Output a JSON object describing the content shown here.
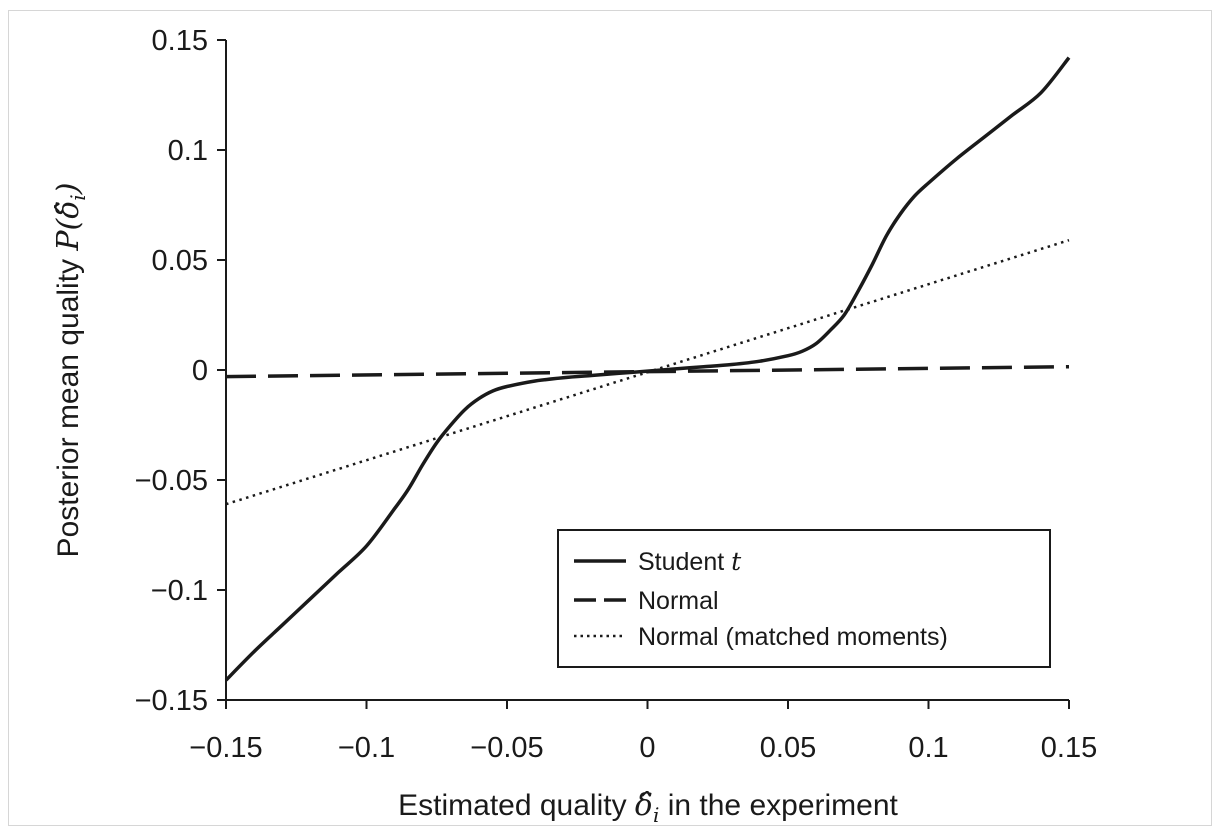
{
  "chart_data": {
    "type": "line",
    "xlabel_prefix": "Estimated quality ",
    "xlabel_symbol": "δ̂",
    "xlabel_subscript": "i",
    "xlabel_suffix": " in the experiment",
    "ylabel_prefix": "Posterior mean quality ",
    "ylabel_symbol": "P(δ̂",
    "ylabel_subscript": "i",
    "ylabel_close": ")",
    "xlim": [
      -0.15,
      0.15
    ],
    "ylim": [
      -0.15,
      0.15
    ],
    "xticks": [
      -0.15,
      -0.1,
      -0.05,
      0,
      0.05,
      0.1,
      0.15
    ],
    "yticks": [
      -0.15,
      -0.1,
      -0.05,
      0,
      0.05,
      0.1,
      0.15
    ],
    "xtick_labels": [
      "−0.15",
      "−0.1",
      "−0.05",
      "0",
      "0.05",
      "0.1",
      "0.15"
    ],
    "ytick_labels": [
      "−0.15",
      "−0.1",
      "−0.05",
      "0",
      "0.05",
      "0.1",
      "0.15"
    ],
    "grid": false,
    "legend_position": "bottom-right",
    "legend": {
      "student_t_prefix": "Student ",
      "student_t_symbol": "t",
      "normal": "Normal",
      "normal_matched": "Normal (matched moments)"
    },
    "series": [
      {
        "key": "student_t",
        "style": "solid",
        "color": "#1a1a1a",
        "points": [
          [
            -0.15,
            -0.141
          ],
          [
            -0.14,
            -0.128
          ],
          [
            -0.13,
            -0.116
          ],
          [
            -0.12,
            -0.104
          ],
          [
            -0.11,
            -0.092
          ],
          [
            -0.1,
            -0.08
          ],
          [
            -0.09,
            -0.063
          ],
          [
            -0.085,
            -0.054
          ],
          [
            -0.08,
            -0.043
          ],
          [
            -0.075,
            -0.033
          ],
          [
            -0.07,
            -0.025
          ],
          [
            -0.065,
            -0.018
          ],
          [
            -0.06,
            -0.013
          ],
          [
            -0.055,
            -0.0095
          ],
          [
            -0.05,
            -0.0075
          ],
          [
            -0.04,
            -0.005
          ],
          [
            -0.03,
            -0.0035
          ],
          [
            -0.02,
            -0.0025
          ],
          [
            -0.01,
            -0.0015
          ],
          [
            0,
            -0.0005
          ],
          [
            0.01,
            0.0005
          ],
          [
            0.02,
            0.0015
          ],
          [
            0.03,
            0.0025
          ],
          [
            0.04,
            0.004
          ],
          [
            0.05,
            0.0065
          ],
          [
            0.055,
            0.0085
          ],
          [
            0.06,
            0.012
          ],
          [
            0.065,
            0.018
          ],
          [
            0.07,
            0.025
          ],
          [
            0.075,
            0.036
          ],
          [
            0.08,
            0.048
          ],
          [
            0.085,
            0.061
          ],
          [
            0.09,
            0.071
          ],
          [
            0.095,
            0.079
          ],
          [
            0.1,
            0.085
          ],
          [
            0.11,
            0.096
          ],
          [
            0.12,
            0.106
          ],
          [
            0.13,
            0.116
          ],
          [
            0.14,
            0.126
          ],
          [
            0.15,
            0.142
          ]
        ]
      },
      {
        "key": "normal",
        "style": "dashed",
        "color": "#1a1a1a",
        "points": [
          [
            -0.15,
            -0.003
          ],
          [
            0.15,
            0.0015
          ]
        ]
      },
      {
        "key": "normal_matched",
        "style": "dotted",
        "color": "#1a1a1a",
        "points": [
          [
            -0.15,
            -0.061
          ],
          [
            0.15,
            0.059
          ]
        ]
      }
    ]
  }
}
